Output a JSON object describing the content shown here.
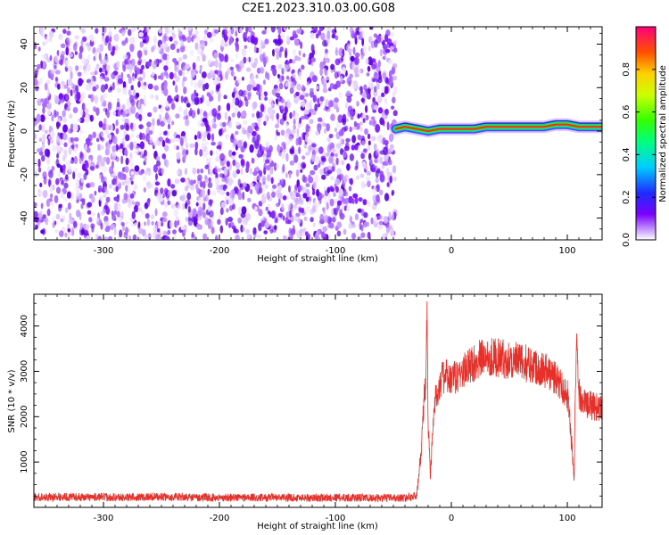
{
  "title": "C2E1.2023.310.03.00.G08",
  "chart_data": [
    {
      "type": "heatmap",
      "xlabel": "Height of straight line (km)",
      "ylabel": "Frequency (Hz)",
      "xlim": [
        -360,
        130
      ],
      "ylim": [
        -50,
        48
      ],
      "xticks": [
        -300,
        -200,
        -100,
        0,
        100
      ],
      "yticks": [
        -40,
        -20,
        0,
        20,
        40
      ],
      "noise_region_x": [
        -360,
        -48
      ],
      "signal_trace": {
        "x": [
          -48,
          -40,
          -30,
          -20,
          -10,
          0,
          10,
          20,
          30,
          40,
          50,
          60,
          70,
          80,
          90,
          100,
          110,
          120,
          130
        ],
        "y": [
          1,
          2,
          1,
          0,
          1,
          1,
          1,
          1,
          2,
          2,
          2,
          2,
          2,
          2,
          3,
          3,
          2,
          2,
          2
        ]
      },
      "colorbar": {
        "label": "Normalized spectral amplitude",
        "range": [
          0.0,
          1.0
        ],
        "ticks": [
          0.0,
          0.2,
          0.4,
          0.6,
          0.8
        ]
      },
      "grid": false
    },
    {
      "type": "line",
      "xlabel": "Height of straight line (km)",
      "ylabel": "SNR (10 * v/v)",
      "xlim": [
        -360,
        130
      ],
      "ylim": [
        0,
        4700
      ],
      "xticks": [
        -300,
        -200,
        -100,
        0,
        100
      ],
      "yticks": [
        1000,
        2000,
        3000,
        4000
      ],
      "series": [
        {
          "color": "#e8302a",
          "x": [
            -360,
            -340,
            -320,
            -300,
            -280,
            -260,
            -240,
            -220,
            -200,
            -180,
            -160,
            -140,
            -120,
            -100,
            -80,
            -60,
            -40,
            -30,
            -26,
            -24,
            -22,
            -21,
            -20,
            -18,
            -15,
            -10,
            -5,
            0,
            10,
            20,
            30,
            40,
            50,
            60,
            70,
            80,
            90,
            100,
            102,
            104,
            106,
            107,
            108,
            110,
            115,
            120,
            125,
            130
          ],
          "values": [
            220,
            230,
            225,
            230,
            220,
            235,
            225,
            220,
            215,
            220,
            215,
            215,
            210,
            220,
            210,
            205,
            210,
            250,
            1200,
            2200,
            2800,
            4400,
            1800,
            700,
            2200,
            2800,
            2900,
            2800,
            3000,
            3200,
            3350,
            3300,
            3250,
            3200,
            3150,
            3050,
            2850,
            2500,
            2000,
            1300,
            600,
            2800,
            3500,
            2500,
            2300,
            2250,
            2200,
            2250
          ]
        }
      ],
      "grid": false
    }
  ]
}
